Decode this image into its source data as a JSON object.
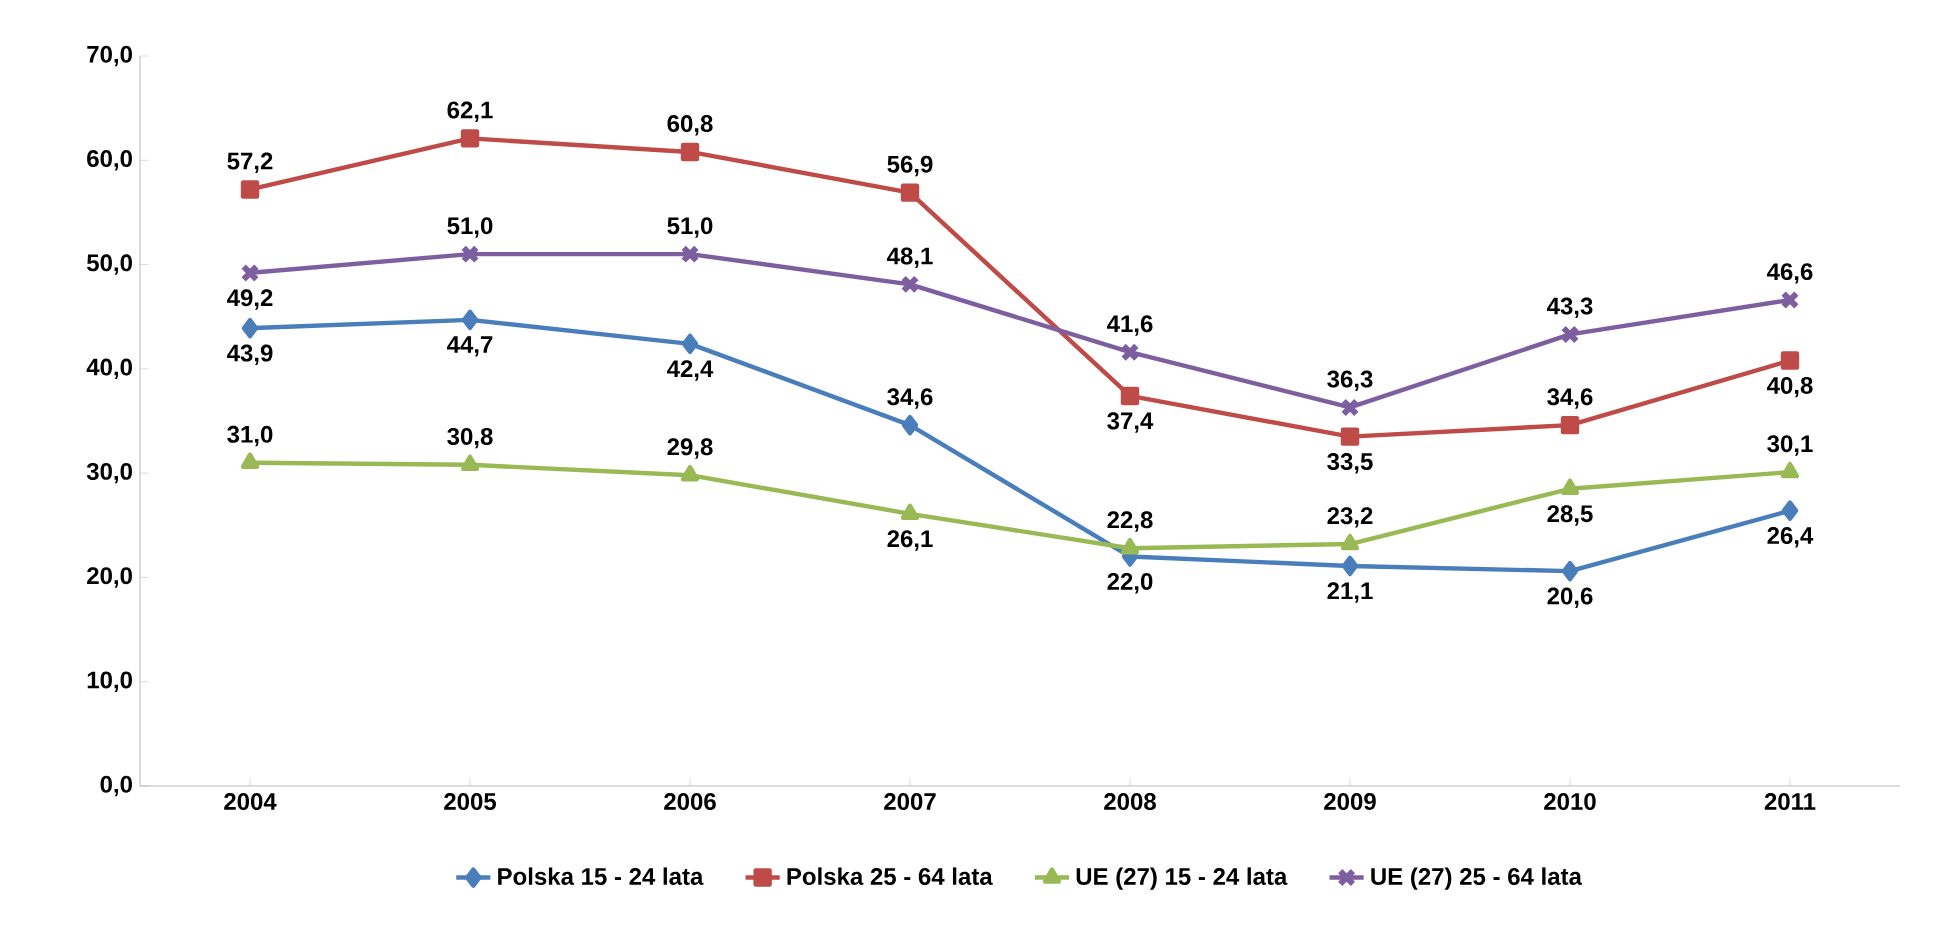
{
  "chart_data": {
    "type": "line",
    "categories": [
      "2004",
      "2005",
      "2006",
      "2007",
      "2008",
      "2009",
      "2010",
      "2011"
    ],
    "ylim": [
      0,
      70
    ],
    "yticks": [
      {
        "value": 0,
        "label": "0,0"
      },
      {
        "value": 10,
        "label": "10,0"
      },
      {
        "value": 20,
        "label": "20,0"
      },
      {
        "value": 30,
        "label": "30,0"
      },
      {
        "value": 40,
        "label": "40,0"
      },
      {
        "value": 50,
        "label": "50,0"
      },
      {
        "value": 60,
        "label": "60,0"
      },
      {
        "value": 70,
        "label": "70,0"
      }
    ],
    "legend": "bottom",
    "grid": false,
    "line_style": "solid",
    "series": [
      {
        "name": "Polska 15 - 24 lata",
        "color": "#4a7ebb",
        "marker": "diamond",
        "values": [
          43.9,
          44.7,
          42.4,
          34.6,
          22.0,
          21.1,
          20.6,
          26.4
        ],
        "value_labels": [
          "43,9",
          "44,7",
          "42,4",
          "34,6",
          "22,0",
          "21,1",
          "20,6",
          "26,4"
        ]
      },
      {
        "name": "Polska 25 - 64 lata",
        "color": "#be4b48",
        "marker": "square",
        "values": [
          57.2,
          62.1,
          60.8,
          56.9,
          37.4,
          33.5,
          34.6,
          40.8
        ],
        "value_labels": [
          "57,2",
          "62,1",
          "60,8",
          "56,9",
          "37,4",
          "33,5",
          "34,6",
          "40,8"
        ]
      },
      {
        "name": "UE (27) 15 - 24 lata",
        "color": "#98b954",
        "marker": "triangle",
        "values": [
          31.0,
          30.8,
          29.8,
          26.1,
          22.8,
          23.2,
          28.5,
          30.1
        ],
        "value_labels": [
          "31,0",
          "30,8",
          "29,8",
          "26,1",
          "22,8",
          "23,2",
          "28,5",
          "30,1"
        ]
      },
      {
        "name": "UE (27) 25 - 64 lata",
        "color": "#7d5fa0",
        "marker": "cross",
        "values": [
          49.2,
          51.0,
          51.0,
          48.1,
          41.6,
          36.3,
          43.3,
          46.6
        ],
        "value_labels": [
          "49,2",
          "51,0",
          "51,0",
          "48,1",
          "41,6",
          "36,3",
          "43,3",
          "46,6"
        ]
      }
    ]
  }
}
